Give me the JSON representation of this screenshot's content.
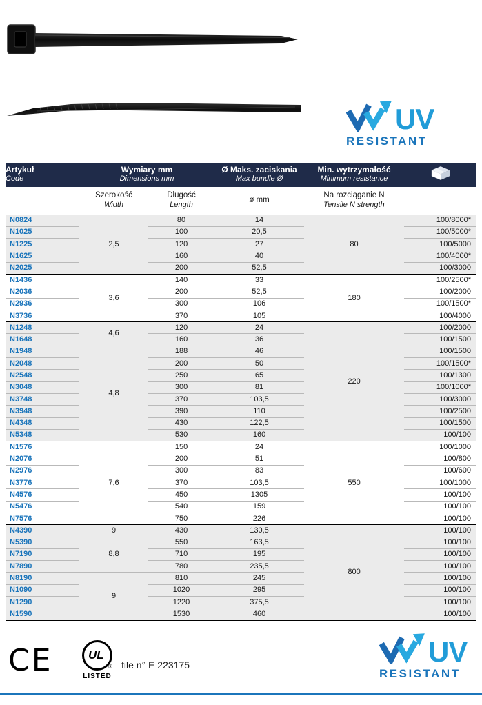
{
  "logo": {
    "uv": "UV",
    "resistant": "RESISTANT",
    "uv_color": "#219cd8",
    "resistant_color": "#1b75bb",
    "mark_dark_color": "#1d6ab2",
    "mark_light_color": "#29a9e0",
    "mark_icon": "double-check-arrow-icon"
  },
  "table": {
    "header_bg_color": "#1f2b49",
    "code_color": "#1b75bb",
    "shaded_row_color": "#ebebeb",
    "header": {
      "code_pl": "Artykuł",
      "code_en": "Code",
      "dims_pl": "Wymiary mm",
      "dims_en": "Dimensions mm",
      "bundle_pl": "Ø Maks. zaciskania",
      "bundle_en": "Max bundle Ø",
      "resist_pl": "Min. wytrzymałość",
      "resist_en": "Minimum resistance",
      "pack_icon": "package-box-icon"
    },
    "subheader": {
      "width_pl": "Szerokość",
      "width_en": "Width",
      "length_pl": "Długość",
      "length_en": "Length",
      "diameter": "ø mm",
      "tensile_pl": "Na rozciąganie N",
      "tensile_en": "Tensile N strength"
    },
    "width_spans": [
      {
        "row": 0,
        "span": 5,
        "value": "2,5"
      },
      {
        "row": 5,
        "span": 4,
        "value": "3,6"
      },
      {
        "row": 9,
        "span": 2,
        "value": "4,6"
      },
      {
        "row": 11,
        "span": 8,
        "value": "4,8"
      },
      {
        "row": 19,
        "span": 7,
        "value": "7,6"
      },
      {
        "row": 26,
        "span": 1,
        "value": "9"
      },
      {
        "row": 27,
        "span": 3,
        "value": "8,8"
      },
      {
        "row": 30,
        "span": 4,
        "value": "9"
      }
    ],
    "tensile_spans": [
      {
        "row": 0,
        "span": 5,
        "value": "80",
        "shaded": true
      },
      {
        "row": 5,
        "span": 4,
        "value": "180",
        "shaded": false
      },
      {
        "row": 9,
        "span": 10,
        "value": "220",
        "shaded": true
      },
      {
        "row": 19,
        "span": 7,
        "value": "550",
        "shaded": false
      },
      {
        "row": 26,
        "span": 8,
        "value": "800",
        "shaded": true
      }
    ],
    "rows": [
      {
        "code": "N0824",
        "len": "80",
        "dia": "14",
        "pack": "100/8000*"
      },
      {
        "code": "N1025",
        "len": "100",
        "dia": "20,5",
        "pack": "100/5000*"
      },
      {
        "code": "N1225",
        "len": "120",
        "dia": "27",
        "pack": "100/5000"
      },
      {
        "code": "N1625",
        "len": "160",
        "dia": "40",
        "pack": "100/4000*"
      },
      {
        "code": "N2025",
        "len": "200",
        "dia": "52,5",
        "pack": "100/3000"
      },
      {
        "code": "N1436",
        "len": "140",
        "dia": "33",
        "pack": "100/2500*"
      },
      {
        "code": "N2036",
        "len": "200",
        "dia": "52,5",
        "pack": "100/2000"
      },
      {
        "code": "N2936",
        "len": "300",
        "dia": "106",
        "pack": "100/1500*"
      },
      {
        "code": "N3736",
        "len": "370",
        "dia": "105",
        "pack": "100/4000"
      },
      {
        "code": "N1248",
        "len": "120",
        "dia": "24",
        "pack": "100/2000"
      },
      {
        "code": "N1648",
        "len": "160",
        "dia": "36",
        "pack": "100/1500"
      },
      {
        "code": "N1948",
        "len": "188",
        "dia": "46",
        "pack": "100/1500"
      },
      {
        "code": "N2048",
        "len": "200",
        "dia": "50",
        "pack": "100/1500*"
      },
      {
        "code": "N2548",
        "len": "250",
        "dia": "65",
        "pack": "100/1300"
      },
      {
        "code": "N3048",
        "len": "300",
        "dia": "81",
        "pack": "100/1000*"
      },
      {
        "code": "N3748",
        "len": "370",
        "dia": "103,5",
        "pack": "100/3000"
      },
      {
        "code": "N3948",
        "len": "390",
        "dia": "110",
        "pack": "100/2500"
      },
      {
        "code": "N4348",
        "len": "430",
        "dia": "122,5",
        "pack": "100/1500"
      },
      {
        "code": "N5348",
        "len": "530",
        "dia": "160",
        "pack": "100/100"
      },
      {
        "code": "N1576",
        "len": "150",
        "dia": "24",
        "pack": "100/1000"
      },
      {
        "code": "N2076",
        "len": "200",
        "dia": "51",
        "pack": "100/800"
      },
      {
        "code": "N2976",
        "len": "300",
        "dia": "83",
        "pack": "100/600"
      },
      {
        "code": "N3776",
        "len": "370",
        "dia": "103,5",
        "pack": "100/1000"
      },
      {
        "code": "N4576",
        "len": "450",
        "dia": "1305",
        "pack": "100/100"
      },
      {
        "code": "N5476",
        "len": "540",
        "dia": "159",
        "pack": "100/100"
      },
      {
        "code": "N7576",
        "len": "750",
        "dia": "226",
        "pack": "100/100"
      },
      {
        "code": "N4390",
        "len": "430",
        "dia": "130,5",
        "pack": "100/100"
      },
      {
        "code": "N5390",
        "len": "550",
        "dia": "163,5",
        "pack": "100/100"
      },
      {
        "code": "N7190",
        "len": "710",
        "dia": "195",
        "pack": "100/100"
      },
      {
        "code": "N7890",
        "len": "780",
        "dia": "235,5",
        "pack": "100/100"
      },
      {
        "code": "N8190",
        "len": "810",
        "dia": "245",
        "pack": "100/100"
      },
      {
        "code": "N1090",
        "len": "1020",
        "dia": "295",
        "pack": "100/100"
      },
      {
        "code": "N1290",
        "len": "1220",
        "dia": "375,5",
        "pack": "100/100"
      },
      {
        "code": "N1590",
        "len": "1530",
        "dia": "460",
        "pack": "100/100"
      }
    ]
  },
  "footer": {
    "ce_label": "CE",
    "ul_label": "UL",
    "ul_registered": "®",
    "ul_listed": "LISTED",
    "file_text": "file n° E 223175"
  }
}
